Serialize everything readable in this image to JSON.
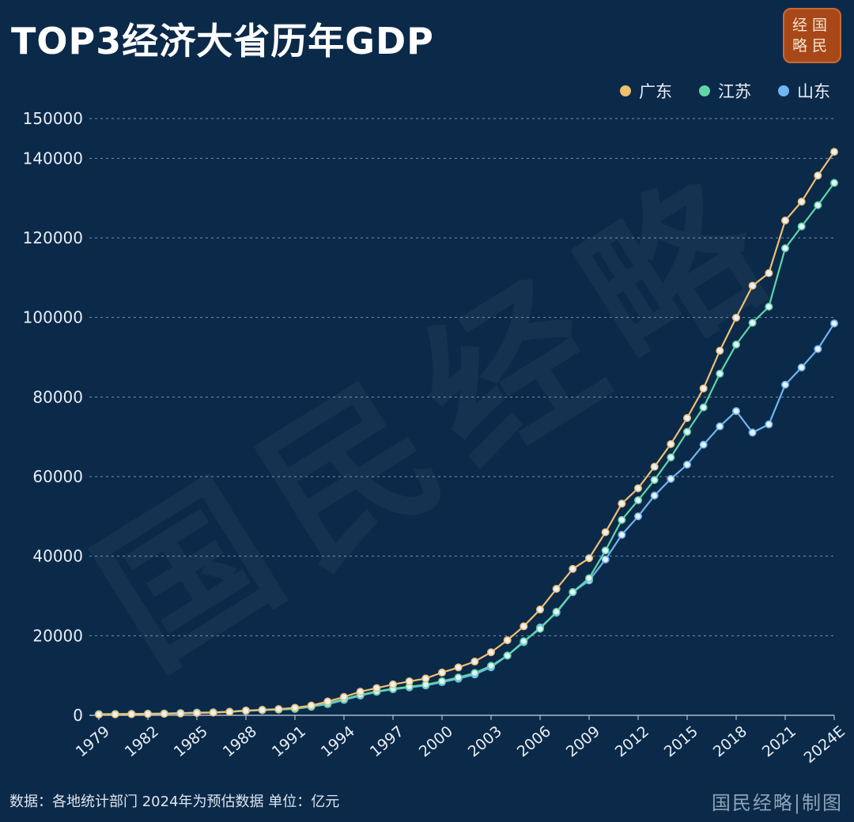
{
  "header": {
    "title": "TOP3经济大省历年GDP",
    "logo_line1": "经国",
    "logo_line2": "略民"
  },
  "watermark": "国民经略",
  "footer": {
    "note": "数据：各地统计部门 2024年为预估数据 单位：亿元",
    "brand": "国民经略|制图"
  },
  "colors": {
    "background": "#0b2a4a",
    "guangdong": "#f0bf72",
    "jiangsu": "#5fd6a8",
    "shandong": "#6fb6f0"
  },
  "chart_data": {
    "type": "line",
    "x": [
      "1979",
      "1980",
      "1981",
      "1982",
      "1983",
      "1984",
      "1985",
      "1986",
      "1987",
      "1988",
      "1989",
      "1990",
      "1991",
      "1992",
      "1993",
      "1994",
      "1995",
      "1996",
      "1997",
      "1998",
      "1999",
      "2000",
      "2001",
      "2002",
      "2003",
      "2004",
      "2005",
      "2006",
      "2007",
      "2008",
      "2009",
      "2010",
      "2011",
      "2012",
      "2013",
      "2014",
      "2015",
      "2016",
      "2017",
      "2018",
      "2019",
      "2020",
      "2021",
      "2022",
      "2023",
      "2024E"
    ],
    "x_tick_labels": [
      "1979",
      "1982",
      "1985",
      "1988",
      "1991",
      "1994",
      "1997",
      "2000",
      "2003",
      "2006",
      "2009",
      "2012",
      "2015",
      "2018",
      "2021",
      "2024E"
    ],
    "ylim": [
      0,
      150000
    ],
    "y_ticks": [
      0,
      20000,
      40000,
      60000,
      80000,
      100000,
      120000,
      140000,
      150000
    ],
    "grid": true,
    "legend_position": "top-right",
    "series": [
      {
        "name": "广东",
        "color": "#f0bf72",
        "values": [
          209,
          250,
          290,
          340,
          368,
          458,
          577,
          667,
          846,
          1155,
          1381,
          1559,
          1893,
          2448,
          3469,
          4619,
          5934,
          6835,
          7774,
          8531,
          9251,
          10741,
          12039,
          13502,
          15845,
          18865,
          22367,
          26588,
          31777,
          36797,
          39483,
          46013,
          53210,
          57068,
          62475,
          68173,
          74732,
          82163,
          91648,
          99945,
          107987,
          111152,
          124370,
          129119,
          135673,
          141634
        ]
      },
      {
        "name": "江苏",
        "color": "#5fd6a8",
        "values": [
          298,
          320,
          350,
          390,
          438,
          518,
          652,
          744,
          922,
          1208,
          1322,
          1417,
          1601,
          2136,
          2998,
          4057,
          5155,
          6004,
          6680,
          7200,
          7697,
          8554,
          9512,
          10632,
          12443,
          15004,
          18599,
          21742,
          26018,
          30982,
          34457,
          41425,
          49110,
          54058,
          59162,
          64830,
          71256,
          77388,
          85870,
          93208,
          98657,
          102719,
          117392,
          122876,
          128222,
          133822
        ]
      },
      {
        "name": "山东",
        "color": "#6fb6f0",
        "values": [
          225,
          292,
          346,
          395,
          459,
          581,
          680,
          742,
          892,
          1118,
          1293,
          1511,
          1810,
          2197,
          2770,
          3844,
          4953,
          5883,
          6537,
          7021,
          7493,
          8337,
          9195,
          10275,
          12078,
          15021,
          18366,
          22077,
          25777,
          30933,
          33896,
          39170,
          45362,
          50013,
          55230,
          59426,
          63002,
          68024,
          72634,
          76470,
          71067,
          73129,
          83096,
          87435,
          92069,
          98500
        ]
      }
    ]
  }
}
